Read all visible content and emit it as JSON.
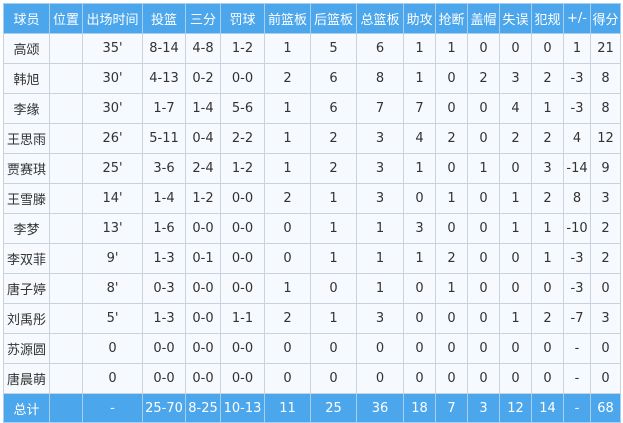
{
  "colors": {
    "header": "#4ba6ec",
    "row": "#f6f9fd",
    "grid": "#c9d3de"
  },
  "columns": [
    "球员",
    "位置",
    "出场时间",
    "投篮",
    "三分",
    "罚球",
    "前篮板",
    "后篮板",
    "总篮板",
    "助攻",
    "抢断",
    "盖帽",
    "失误",
    "犯规",
    "+/-",
    "得分"
  ],
  "rows": [
    [
      "高颂",
      "",
      "35'",
      "8-14",
      "4-8",
      "1-2",
      "1",
      "5",
      "6",
      "1",
      "1",
      "0",
      "0",
      "0",
      "1",
      "21"
    ],
    [
      "韩旭",
      "",
      "30'",
      "4-13",
      "0-2",
      "0-0",
      "2",
      "6",
      "8",
      "1",
      "0",
      "2",
      "3",
      "2",
      "-3",
      "8"
    ],
    [
      "李缘",
      "",
      "30'",
      "1-7",
      "1-4",
      "5-6",
      "1",
      "6",
      "7",
      "7",
      "0",
      "0",
      "4",
      "1",
      "-3",
      "8"
    ],
    [
      "王思雨",
      "",
      "26'",
      "5-11",
      "0-4",
      "2-2",
      "1",
      "2",
      "3",
      "4",
      "2",
      "0",
      "2",
      "2",
      "4",
      "12"
    ],
    [
      "贾赛琪",
      "",
      "25'",
      "3-6",
      "2-4",
      "1-2",
      "1",
      "2",
      "3",
      "1",
      "0",
      "1",
      "0",
      "3",
      "-14",
      "9"
    ],
    [
      "王雪滕",
      "",
      "14'",
      "1-4",
      "1-2",
      "0-0",
      "2",
      "1",
      "3",
      "0",
      "1",
      "0",
      "1",
      "2",
      "8",
      "3"
    ],
    [
      "李梦",
      "",
      "13'",
      "1-6",
      "0-0",
      "0-0",
      "0",
      "1",
      "1",
      "3",
      "0",
      "0",
      "1",
      "1",
      "-10",
      "2"
    ],
    [
      "李双菲",
      "",
      "9'",
      "1-3",
      "0-1",
      "0-0",
      "0",
      "1",
      "1",
      "1",
      "2",
      "0",
      "0",
      "1",
      "-3",
      "2"
    ],
    [
      "唐子婷",
      "",
      "8'",
      "0-3",
      "0-0",
      "0-0",
      "1",
      "0",
      "1",
      "0",
      "1",
      "0",
      "0",
      "0",
      "-3",
      "0"
    ],
    [
      "刘禹彤",
      "",
      "5'",
      "1-3",
      "0-0",
      "1-1",
      "2",
      "1",
      "3",
      "0",
      "0",
      "0",
      "1",
      "2",
      "-7",
      "3"
    ],
    [
      "苏源圆",
      "",
      "0",
      "0-0",
      "0-0",
      "0-0",
      "0",
      "0",
      "0",
      "0",
      "0",
      "0",
      "0",
      "0",
      "-",
      "0"
    ],
    [
      "唐晨萌",
      "",
      "0",
      "0-0",
      "0-0",
      "0-0",
      "0",
      "0",
      "0",
      "0",
      "0",
      "0",
      "0",
      "0",
      "-",
      "0"
    ]
  ],
  "total": [
    "总计",
    "",
    "-",
    "25-70",
    "8-25",
    "10-13",
    "11",
    "25",
    "36",
    "18",
    "7",
    "3",
    "12",
    "14",
    "-",
    "68"
  ]
}
